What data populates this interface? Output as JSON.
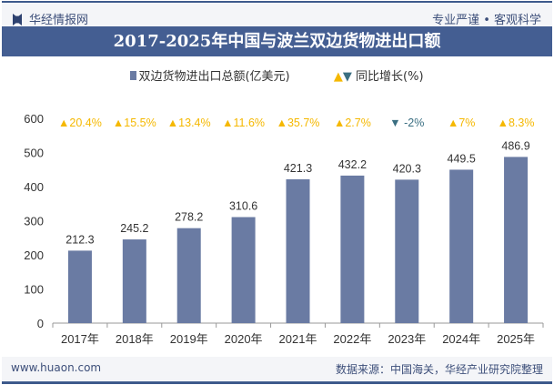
{
  "header": {
    "logo": "华经情报网",
    "slogan": "专业严谨 • 客观科学"
  },
  "footer": {
    "website": "www.huaon.com",
    "source": "数据来源：中国海关，华经产业研究院整理"
  },
  "chart_data": {
    "type": "bar",
    "title": "2017-2025年中国与波兰双边货物进出口额",
    "categories": [
      "2017年",
      "2018年",
      "2019年",
      "2020年",
      "2021年",
      "2022年",
      "2023年",
      "2024年",
      "2025年"
    ],
    "series": [
      {
        "name": "双边货物进出口总额(亿美元)",
        "values": [
          212.3,
          245.2,
          278.2,
          310.6,
          421.3,
          432.2,
          420.3,
          449.5,
          486.9
        ],
        "color": "#6a7ba3"
      },
      {
        "name": "同比增长(%)",
        "values": [
          20.4,
          15.5,
          13.4,
          11.6,
          35.7,
          2.7,
          -2,
          7,
          8.3
        ],
        "labels": [
          "20.4%",
          "15.5%",
          "13.4%",
          "11.6%",
          "35.7%",
          "2.7%",
          "-2%",
          "7%",
          "8.3%"
        ],
        "up_color": "#f5b800",
        "down_color": "#3b6f82"
      }
    ],
    "yticks": [
      0,
      100,
      200,
      300,
      400,
      500,
      600
    ],
    "ylim": [
      0,
      600
    ],
    "legend": "top",
    "grid": false
  }
}
